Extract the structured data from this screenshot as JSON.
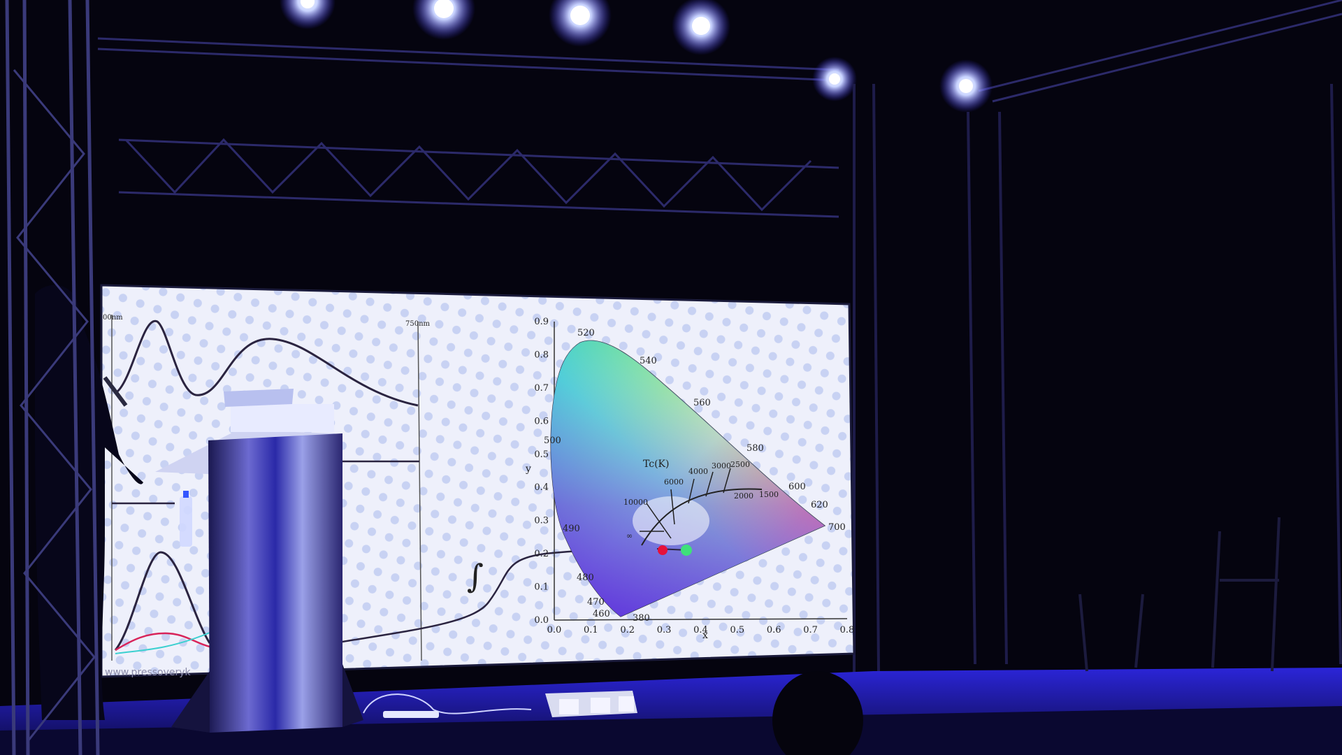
{
  "scene": {
    "colors": {
      "background": "#04030f",
      "stage_blue": "#2a26c8",
      "light_white": "#e8ecff",
      "screen_bg": "#eef0fb",
      "curve": "#2b2440"
    }
  },
  "slide": {
    "left_panel": {
      "label_start": "00nm",
      "label_end": "750nm",
      "watermark": "www.pressoveryk"
    },
    "integral_symbol": "∫",
    "cie_chart": {
      "xlabel": "x",
      "ylabel": "y",
      "x_ticks": [
        "0.0",
        "0.1",
        "0.2",
        "0.3",
        "0.4",
        "0.5",
        "0.6",
        "0.7",
        "0.8"
      ],
      "y_ticks": [
        "0.0",
        "0.1",
        "0.2",
        "0.3",
        "0.4",
        "0.5",
        "0.6",
        "0.7",
        "0.8",
        "0.9"
      ],
      "wavelengths": [
        "380",
        "460",
        "470",
        "480",
        "490",
        "500",
        "520",
        "540",
        "560",
        "580",
        "600",
        "620",
        "700"
      ],
      "planckian_label": "Tc(K)",
      "temperatures": [
        "10000",
        "6000",
        "4000",
        "3000",
        "2500",
        "2000",
        "1500",
        "∞"
      ]
    }
  }
}
